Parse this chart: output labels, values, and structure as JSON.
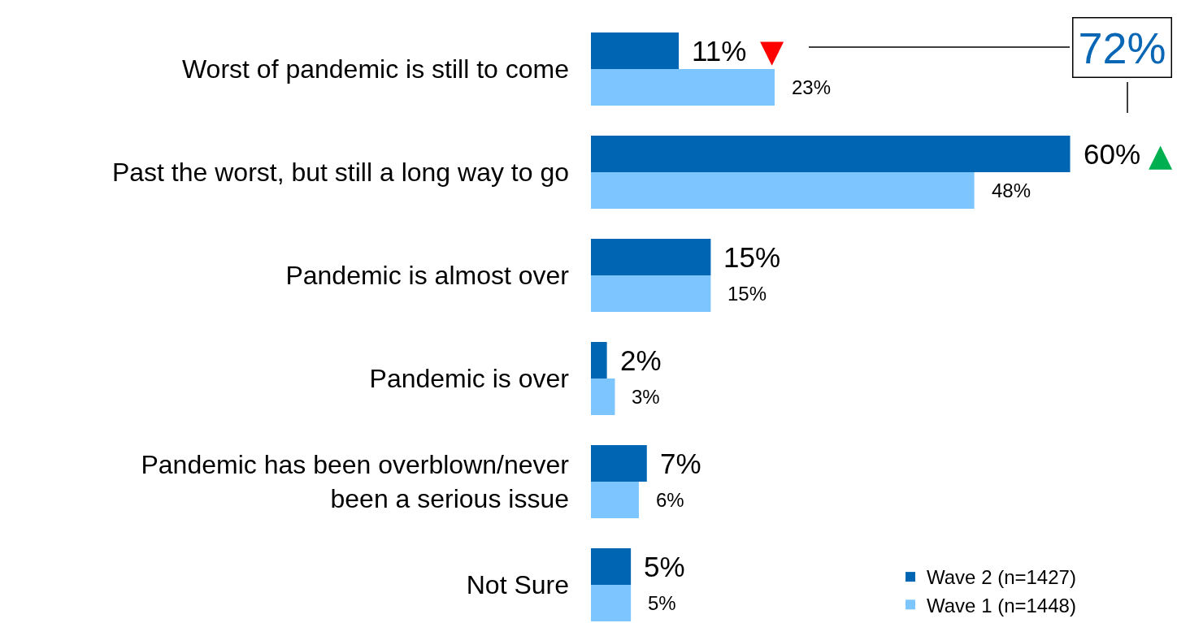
{
  "chart_data": {
    "type": "bar",
    "orientation": "horizontal",
    "tick_labels": "y",
    "legend": "bottom right",
    "categories": [
      "Worst of pandemic is still to come",
      "Past the worst, but still a long way to go",
      "Pandemic is almost over",
      "Pandemic is over",
      "Pandemic has been overblown/never\nbeen a serious issue",
      "Not Sure"
    ],
    "series": [
      {
        "name": "Wave 2 (n=1427)",
        "color": "#0066b3",
        "values": [
          11,
          60,
          15,
          2,
          7,
          5
        ],
        "value_labels": [
          "11%",
          "60%",
          "15%",
          "2%",
          "7%",
          "5%"
        ]
      },
      {
        "name": "Wave 1 (n=1448)",
        "color": "#7dc5ff",
        "values": [
          23,
          48,
          15,
          3,
          6,
          5
        ],
        "value_labels": [
          "23%",
          "48%",
          "15%",
          "3%",
          "6%",
          "5%"
        ]
      }
    ],
    "annotations": [
      "▼",
      "▲",
      "72%"
    ]
  }
}
